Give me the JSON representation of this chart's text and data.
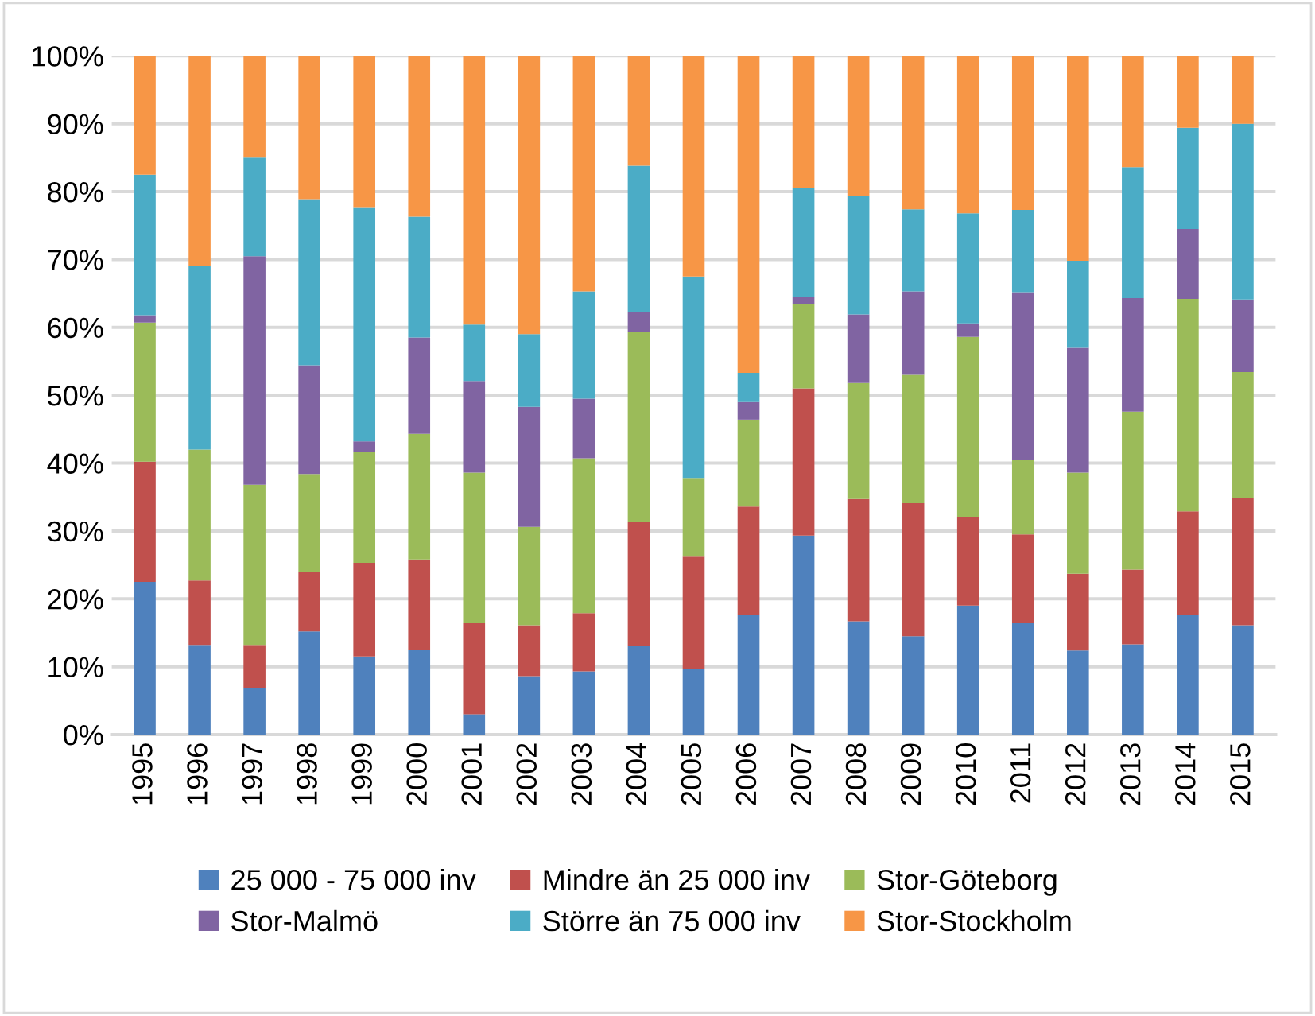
{
  "chart_data": {
    "type": "bar",
    "stacked": true,
    "categories": [
      "1995",
      "1996",
      "1997",
      "1998",
      "1999",
      "2000",
      "2001",
      "2002",
      "2003",
      "2004",
      "2005",
      "2006",
      "2007",
      "2008",
      "2009",
      "2010",
      "2011",
      "2012",
      "2013",
      "2014",
      "2015"
    ],
    "series": [
      {
        "name": "25 000 - 75 000 inv",
        "color": "#4f81bd",
        "values": [
          22.5,
          13.2,
          6.8,
          15.2,
          11.5,
          12.5,
          3.0,
          8.6,
          9.3,
          13.0,
          9.6,
          17.6,
          29.3,
          16.7,
          14.5,
          19.0,
          16.4,
          12.4,
          13.3,
          17.6,
          16.1
        ]
      },
      {
        "name": "Mindre än 25 000 inv",
        "color": "#c0504d",
        "values": [
          17.7,
          9.5,
          6.4,
          8.7,
          13.8,
          13.3,
          13.4,
          7.5,
          8.6,
          18.4,
          16.6,
          16.0,
          21.7,
          18.0,
          19.6,
          13.1,
          13.1,
          11.3,
          11.0,
          15.3,
          18.7
        ]
      },
      {
        "name": "Stor-Göteborg",
        "color": "#9bbb59",
        "values": [
          20.5,
          19.3,
          23.6,
          14.5,
          16.3,
          18.5,
          22.2,
          14.5,
          22.8,
          27.9,
          11.6,
          12.8,
          12.4,
          17.1,
          18.9,
          26.5,
          10.9,
          14.9,
          23.3,
          31.3,
          18.6
        ]
      },
      {
        "name": "Stor-Malmö",
        "color": "#8064a2",
        "values": [
          1.1,
          0,
          33.7,
          16.0,
          1.6,
          14.2,
          13.5,
          17.7,
          8.8,
          3.0,
          0,
          2.6,
          1.1,
          10.1,
          12.3,
          2.0,
          24.8,
          18.4,
          16.7,
          10.3,
          10.7
        ]
      },
      {
        "name": "Större än 75 000 inv",
        "color": "#4bacc6",
        "values": [
          20.7,
          27.0,
          14.5,
          24.5,
          34.4,
          17.8,
          8.3,
          10.7,
          15.8,
          21.5,
          29.7,
          4.3,
          16.0,
          17.5,
          12.1,
          16.2,
          12.1,
          12.8,
          19.3,
          14.9,
          25.9
        ]
      },
      {
        "name": "Stor-Stockholm",
        "color": "#f79646",
        "values": [
          17.5,
          31.0,
          15.0,
          21.1,
          22.4,
          23.7,
          39.6,
          41.0,
          34.7,
          16.2,
          32.5,
          46.7,
          19.5,
          20.6,
          22.6,
          23.2,
          22.7,
          30.2,
          16.4,
          10.6,
          10.0
        ]
      }
    ],
    "ylim": [
      0,
      100
    ],
    "yticks": [
      {
        "value": 0,
        "label": "0%"
      },
      {
        "value": 10,
        "label": "10%"
      },
      {
        "value": 20,
        "label": "20%"
      },
      {
        "value": 30,
        "label": "30%"
      },
      {
        "value": 40,
        "label": "40%"
      },
      {
        "value": 50,
        "label": "50%"
      },
      {
        "value": 60,
        "label": "60%"
      },
      {
        "value": 70,
        "label": "70%"
      },
      {
        "value": 80,
        "label": "80%"
      },
      {
        "value": 90,
        "label": "90%"
      },
      {
        "value": 100,
        "label": "100%"
      }
    ],
    "grid": "y",
    "legend": "bottom"
  }
}
